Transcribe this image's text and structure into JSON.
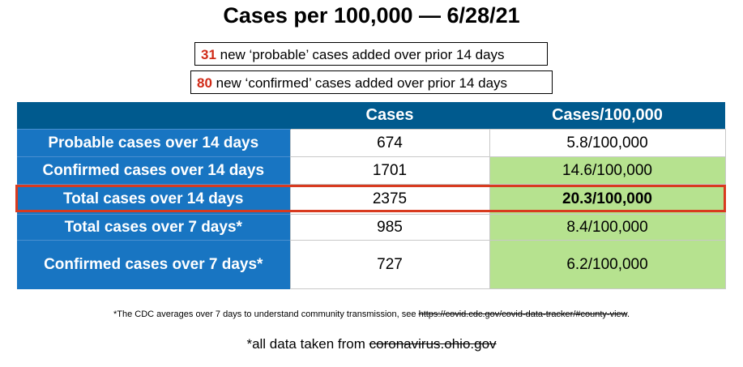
{
  "title": "Cases per 100,000 — 6/28/21",
  "callouts": {
    "probable": {
      "number": "31",
      "text": " new ‘probable’ cases added over prior 14 days"
    },
    "confirmed": {
      "number": "80",
      "text": " new ‘confirmed’ cases added over prior 14 days"
    }
  },
  "table": {
    "headers": [
      "",
      "Cases",
      "Cases/100,000"
    ],
    "rows": [
      {
        "label": "Probable cases over 14 days",
        "cases": "674",
        "rate": "5.8/100,000"
      },
      {
        "label": "Confirmed cases over 14 days",
        "cases": "1701",
        "rate": "14.6/100,000"
      },
      {
        "label": "Total cases over 14 days",
        "cases": "2375",
        "rate": "20.3/100,000"
      },
      {
        "label": "Total cases over 7 days*",
        "cases": "985",
        "rate": "8.4/100,000"
      },
      {
        "label": "Confirmed cases over 7 days*",
        "cases": "727",
        "rate": "6.2/100,000"
      }
    ]
  },
  "footnote": {
    "text": "*The CDC averages over 7 days to understand community transmission, see ",
    "link": "https://covid.cdc.gov/covid-data-tracker/#county-view",
    "end": "."
  },
  "source": {
    "text": "*all data taken from ",
    "link": "coronavirus.ohio.gov"
  },
  "colors": {
    "header_bg": "#005a8e",
    "row_label_bg": "#1875c2",
    "highlight_green": "#b6e28f",
    "accent_red": "#d02a17"
  }
}
